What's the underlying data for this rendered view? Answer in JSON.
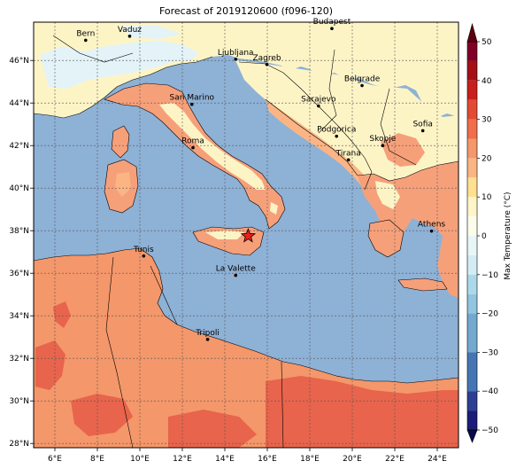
{
  "title": "Forecast of 2019120600 (f096-120)",
  "map": {
    "lon_range": [
      5,
      25
    ],
    "lat_range": [
      27.8,
      47.8
    ],
    "xticks": [
      {
        "lon": 6,
        "label": "6°E"
      },
      {
        "lon": 8,
        "label": "8°E"
      },
      {
        "lon": 10,
        "label": "10°E"
      },
      {
        "lon": 12,
        "label": "12°E"
      },
      {
        "lon": 14,
        "label": "14°E"
      },
      {
        "lon": 16,
        "label": "16°E"
      },
      {
        "lon": 18,
        "label": "18°E"
      },
      {
        "lon": 20,
        "label": "20°E"
      },
      {
        "lon": 22,
        "label": "22°E"
      },
      {
        "lon": 24,
        "label": "24°E"
      }
    ],
    "yticks": [
      {
        "lat": 28,
        "label": "28°N"
      },
      {
        "lat": 30,
        "label": "30°N"
      },
      {
        "lat": 32,
        "label": "32°N"
      },
      {
        "lat": 34,
        "label": "34°N"
      },
      {
        "lat": 36,
        "label": "36°N"
      },
      {
        "lat": 38,
        "label": "38°N"
      },
      {
        "lat": 40,
        "label": "40°N"
      },
      {
        "lat": 42,
        "label": "42°N"
      },
      {
        "lat": 44,
        "label": "44°N"
      },
      {
        "lat": 46,
        "label": "46°N"
      }
    ],
    "cities": [
      {
        "name": "Bern",
        "lon": 7.45,
        "lat": 46.95
      },
      {
        "name": "Vaduz",
        "lon": 9.52,
        "lat": 47.14
      },
      {
        "name": "Budapest",
        "lon": 19.04,
        "lat": 47.5
      },
      {
        "name": "Ljubljana",
        "lon": 14.51,
        "lat": 46.06
      },
      {
        "name": "Zagreb",
        "lon": 15.98,
        "lat": 45.81
      },
      {
        "name": "Belgrade",
        "lon": 20.46,
        "lat": 44.82
      },
      {
        "name": "Sarajevo",
        "lon": 18.41,
        "lat": 43.86
      },
      {
        "name": "San Marino",
        "lon": 12.45,
        "lat": 43.94
      },
      {
        "name": "Sofia",
        "lon": 23.32,
        "lat": 42.7
      },
      {
        "name": "Podgorica",
        "lon": 19.26,
        "lat": 42.44
      },
      {
        "name": "Skopje",
        "lon": 21.43,
        "lat": 42.0
      },
      {
        "name": "Roma",
        "lon": 12.5,
        "lat": 41.9
      },
      {
        "name": "Tirana",
        "lon": 19.82,
        "lat": 41.33
      },
      {
        "name": "Athens",
        "lon": 23.73,
        "lat": 37.98
      },
      {
        "name": "Tunis",
        "lon": 10.18,
        "lat": 36.81
      },
      {
        "name": "La Valette",
        "lon": 14.51,
        "lat": 35.9
      },
      {
        "name": "Tripoli",
        "lon": 13.19,
        "lat": 32.89
      }
    ],
    "marker": {
      "lon": 15.1,
      "lat": 37.75,
      "color": "#e8211c"
    }
  },
  "colorbar": {
    "label": "Max Temperature (°C)",
    "ticks": [
      {
        "value": 50,
        "label": "50"
      },
      {
        "value": 40,
        "label": "40"
      },
      {
        "value": 30,
        "label": "30"
      },
      {
        "value": 20,
        "label": "20"
      },
      {
        "value": 10,
        "label": "10"
      },
      {
        "value": 0,
        "label": "0"
      },
      {
        "value": -10,
        "label": "−10"
      },
      {
        "value": -20,
        "label": "−20"
      },
      {
        "value": -30,
        "label": "−30"
      },
      {
        "value": -40,
        "label": "−40"
      },
      {
        "value": -50,
        "label": "−50"
      }
    ],
    "bands": [
      {
        "from": 45,
        "to": 50,
        "color": "#800026"
      },
      {
        "from": 40,
        "to": 45,
        "color": "#a50f15"
      },
      {
        "from": 35,
        "to": 40,
        "color": "#c8201d"
      },
      {
        "from": 30,
        "to": 35,
        "color": "#e34a33"
      },
      {
        "from": 25,
        "to": 30,
        "color": "#f06e4c"
      },
      {
        "from": 20,
        "to": 25,
        "color": "#f4976a"
      },
      {
        "from": 15,
        "to": 20,
        "color": "#fbb585"
      },
      {
        "from": 10,
        "to": 15,
        "color": "#fee090"
      },
      {
        "from": 5,
        "to": 10,
        "color": "#fff5c8"
      },
      {
        "from": 0,
        "to": 5,
        "color": "#fcfcea"
      },
      {
        "from": -5,
        "to": 0,
        "color": "#e8f6f8"
      },
      {
        "from": -10,
        "to": -5,
        "color": "#d3edf3"
      },
      {
        "from": -15,
        "to": -10,
        "color": "#abd9e9"
      },
      {
        "from": -20,
        "to": -15,
        "color": "#92c5de"
      },
      {
        "from": -30,
        "to": -20,
        "color": "#74a9cf"
      },
      {
        "from": -40,
        "to": -30,
        "color": "#4575b4"
      },
      {
        "from": -45,
        "to": -40,
        "color": "#2c3f93"
      },
      {
        "from": -50,
        "to": -45,
        "color": "#1c1d78"
      }
    ],
    "over_color": "#5e0011",
    "under_color": "#0a0a4a"
  }
}
